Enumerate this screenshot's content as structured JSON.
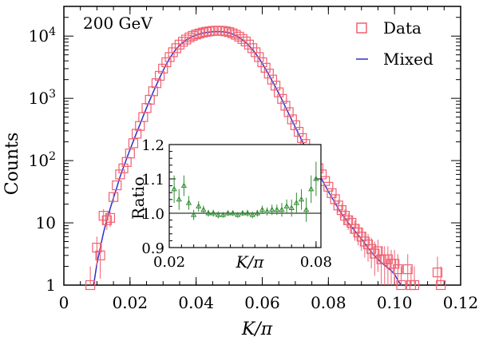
{
  "chart_data": [
    {
      "type": "scatter",
      "title": "",
      "xlabel": "K/π",
      "ylabel": "Counts",
      "annotation": "200 GeV",
      "xlim": [
        0,
        0.12
      ],
      "ylim": [
        1,
        30000
      ],
      "yscale": "log",
      "x_ticks": [
        0,
        0.02,
        0.04,
        0.06,
        0.08,
        0.1,
        0.12
      ],
      "x_tick_labels": [
        "0",
        "0.02",
        "0.04",
        "0.06",
        "0.08",
        "0.10",
        "0.12"
      ],
      "y_ticks": [
        1,
        10,
        100,
        1000,
        10000
      ],
      "y_tick_labels": [
        "1",
        "10",
        "10^2",
        "10^3",
        "10^4"
      ],
      "legend_position": "top-right",
      "series": [
        {
          "name": "Data",
          "style": "open-square",
          "color": "#f06070",
          "points": [
            [
              0.008,
              1
            ],
            [
              0.01,
              4
            ],
            [
              0.011,
              3
            ],
            [
              0.012,
              13
            ],
            [
              0.013,
              11
            ],
            [
              0.014,
              12
            ],
            [
              0.015,
              26
            ],
            [
              0.016,
              40
            ],
            [
              0.017,
              60
            ],
            [
              0.018,
              75
            ],
            [
              0.019,
              95
            ],
            [
              0.02,
              130
            ],
            [
              0.021,
              190
            ],
            [
              0.022,
              270
            ],
            [
              0.023,
              360
            ],
            [
              0.024,
              500
            ],
            [
              0.025,
              700
            ],
            [
              0.026,
              950
            ],
            [
              0.027,
              1300
            ],
            [
              0.028,
              1750
            ],
            [
              0.029,
              2300
            ],
            [
              0.03,
              3000
            ],
            [
              0.031,
              3800
            ],
            [
              0.032,
              4600
            ],
            [
              0.033,
              5500
            ],
            [
              0.034,
              6400
            ],
            [
              0.035,
              7300
            ],
            [
              0.036,
              8100
            ],
            [
              0.037,
              8800
            ],
            [
              0.038,
              9500
            ],
            [
              0.039,
              10100
            ],
            [
              0.04,
              10600
            ],
            [
              0.041,
              11000
            ],
            [
              0.042,
              11400
            ],
            [
              0.043,
              11700
            ],
            [
              0.044,
              11900
            ],
            [
              0.045,
              12100
            ],
            [
              0.046,
              12200
            ],
            [
              0.047,
              12200
            ],
            [
              0.048,
              12100
            ],
            [
              0.049,
              11900
            ],
            [
              0.05,
              11600
            ],
            [
              0.051,
              11100
            ],
            [
              0.052,
              10500
            ],
            [
              0.053,
              9800
            ],
            [
              0.054,
              9000
            ],
            [
              0.055,
              8200
            ],
            [
              0.056,
              7300
            ],
            [
              0.057,
              6400
            ],
            [
              0.058,
              5500
            ],
            [
              0.059,
              4600
            ],
            [
              0.06,
              3800
            ],
            [
              0.061,
              3100
            ],
            [
              0.062,
              2500
            ],
            [
              0.063,
              2000
            ],
            [
              0.064,
              1600
            ],
            [
              0.065,
              1250
            ],
            [
              0.066,
              980
            ],
            [
              0.067,
              760
            ],
            [
              0.068,
              600
            ],
            [
              0.069,
              460
            ],
            [
              0.07,
              370
            ],
            [
              0.071,
              290
            ],
            [
              0.072,
              230
            ],
            [
              0.073,
              185
            ],
            [
              0.074,
              150
            ],
            [
              0.075,
              120
            ],
            [
              0.076,
              95
            ],
            [
              0.077,
              75
            ],
            [
              0.078,
              60
            ],
            [
              0.079,
              47
            ],
            [
              0.08,
              38
            ],
            [
              0.081,
              30
            ],
            [
              0.082,
              24
            ],
            [
              0.083,
              19
            ],
            [
              0.084,
              16
            ],
            [
              0.085,
              13
            ],
            [
              0.086,
              11
            ],
            [
              0.087,
              10
            ],
            [
              0.088,
              8
            ],
            [
              0.089,
              7
            ],
            [
              0.09,
              6
            ],
            [
              0.091,
              5
            ],
            [
              0.092,
              4.5
            ],
            [
              0.093,
              3.8
            ],
            [
              0.094,
              3.2
            ],
            [
              0.095,
              3.5
            ],
            [
              0.096,
              2.6
            ],
            [
              0.097,
              2.6
            ],
            [
              0.098,
              2.6
            ],
            [
              0.099,
              2.2
            ],
            [
              0.1,
              2.2
            ],
            [
              0.101,
              1.8
            ],
            [
              0.102,
              1
            ],
            [
              0.104,
              1.8
            ],
            [
              0.105,
              1
            ],
            [
              0.106,
              1
            ],
            [
              0.113,
              1.6
            ],
            [
              0.114,
              1
            ]
          ]
        },
        {
          "name": "Mixed",
          "style": "line",
          "color": "#2a2fd0",
          "points": [
            [
              0.009,
              1
            ],
            [
              0.01,
              2.2
            ],
            [
              0.011,
              4
            ],
            [
              0.012,
              7
            ],
            [
              0.013,
              11
            ],
            [
              0.014,
              17
            ],
            [
              0.015,
              25
            ],
            [
              0.016,
              37
            ],
            [
              0.017,
              55
            ],
            [
              0.018,
              78
            ],
            [
              0.019,
              108
            ],
            [
              0.02,
              150
            ],
            [
              0.021,
              205
            ],
            [
              0.022,
              280
            ],
            [
              0.023,
              380
            ],
            [
              0.024,
              520
            ],
            [
              0.025,
              700
            ],
            [
              0.026,
              940
            ],
            [
              0.027,
              1250
            ],
            [
              0.028,
              1650
            ],
            [
              0.029,
              2150
            ],
            [
              0.03,
              2800
            ],
            [
              0.031,
              3550
            ],
            [
              0.032,
              4400
            ],
            [
              0.033,
              5300
            ],
            [
              0.034,
              6200
            ],
            [
              0.035,
              7100
            ],
            [
              0.036,
              7900
            ],
            [
              0.037,
              8650
            ],
            [
              0.038,
              9300
            ],
            [
              0.039,
              9900
            ],
            [
              0.04,
              10400
            ],
            [
              0.041,
              10800
            ],
            [
              0.042,
              11150
            ],
            [
              0.043,
              11400
            ],
            [
              0.044,
              11600
            ],
            [
              0.045,
              11750
            ],
            [
              0.046,
              11800
            ],
            [
              0.047,
              11800
            ],
            [
              0.048,
              11750
            ],
            [
              0.049,
              11550
            ],
            [
              0.05,
              11250
            ],
            [
              0.051,
              10800
            ],
            [
              0.052,
              10200
            ],
            [
              0.053,
              9500
            ],
            [
              0.054,
              8700
            ],
            [
              0.055,
              7900
            ],
            [
              0.056,
              7000
            ],
            [
              0.057,
              6100
            ],
            [
              0.058,
              5250
            ],
            [
              0.059,
              4400
            ],
            [
              0.06,
              3650
            ],
            [
              0.061,
              2950
            ],
            [
              0.062,
              2400
            ],
            [
              0.063,
              1900
            ],
            [
              0.064,
              1520
            ],
            [
              0.065,
              1200
            ],
            [
              0.066,
              940
            ],
            [
              0.067,
              730
            ],
            [
              0.068,
              570
            ],
            [
              0.069,
              440
            ],
            [
              0.07,
              345
            ],
            [
              0.071,
              268
            ],
            [
              0.072,
              210
            ],
            [
              0.073,
              165
            ],
            [
              0.074,
              130
            ],
            [
              0.075,
              102
            ],
            [
              0.076,
              80
            ],
            [
              0.077,
              63
            ],
            [
              0.078,
              50
            ],
            [
              0.079,
              40
            ],
            [
              0.08,
              32
            ],
            [
              0.081,
              26
            ],
            [
              0.082,
              21
            ],
            [
              0.083,
              17
            ],
            [
              0.084,
              14
            ],
            [
              0.085,
              12
            ],
            [
              0.086,
              10
            ],
            [
              0.087,
              8.6
            ],
            [
              0.088,
              7.4
            ],
            [
              0.089,
              6.4
            ],
            [
              0.09,
              5.5
            ],
            [
              0.091,
              4.7
            ],
            [
              0.092,
              4
            ],
            [
              0.093,
              3.4
            ],
            [
              0.094,
              2.9
            ],
            [
              0.095,
              2.6
            ],
            [
              0.096,
              2.3
            ],
            [
              0.097,
              2.1
            ],
            [
              0.098,
              1.9
            ],
            [
              0.099,
              1.7
            ],
            [
              0.1,
              1.5
            ],
            [
              0.101,
              1.2
            ],
            [
              0.102,
              1
            ]
          ]
        }
      ]
    },
    {
      "type": "scatter",
      "title": "",
      "xlabel": "K/π",
      "ylabel": "Ratio",
      "xlim": [
        0.02,
        0.082
      ],
      "ylim": [
        0.9,
        1.2
      ],
      "x_ticks": [
        0.02,
        0.08
      ],
      "x_tick_labels": [
        "0.02",
        "0.08"
      ],
      "y_ticks": [
        0.9,
        1.0,
        1.1,
        1.2
      ],
      "y_tick_labels": [
        "0.9",
        "1.0",
        "1.1",
        "1.2"
      ],
      "reference_line": 1.0,
      "series": [
        {
          "name": "",
          "style": "open-triangle",
          "color": "#2e8b2e",
          "points": [
            [
              0.022,
              1.07,
              0.04
            ],
            [
              0.024,
              1.04,
              0.03
            ],
            [
              0.026,
              1.08,
              0.03
            ],
            [
              0.028,
              1.03,
              0.02
            ],
            [
              0.03,
              0.995,
              0.015
            ],
            [
              0.032,
              1.02,
              0.015
            ],
            [
              0.034,
              1.01,
              0.012
            ],
            [
              0.036,
              1.0,
              0.01
            ],
            [
              0.038,
              1.0,
              0.01
            ],
            [
              0.04,
              0.995,
              0.01
            ],
            [
              0.042,
              0.995,
              0.008
            ],
            [
              0.044,
              1.0,
              0.008
            ],
            [
              0.046,
              1.0,
              0.008
            ],
            [
              0.048,
              0.995,
              0.008
            ],
            [
              0.05,
              1.0,
              0.008
            ],
            [
              0.052,
              1.0,
              0.01
            ],
            [
              0.054,
              0.995,
              0.01
            ],
            [
              0.056,
              1.0,
              0.01
            ],
            [
              0.058,
              1.01,
              0.012
            ],
            [
              0.06,
              1.005,
              0.012
            ],
            [
              0.062,
              1.01,
              0.015
            ],
            [
              0.064,
              1.01,
              0.015
            ],
            [
              0.066,
              1.01,
              0.02
            ],
            [
              0.068,
              1.02,
              0.02
            ],
            [
              0.07,
              1.015,
              0.025
            ],
            [
              0.072,
              1.03,
              0.03
            ],
            [
              0.074,
              1.04,
              0.03
            ],
            [
              0.076,
              1.01,
              0.035
            ],
            [
              0.078,
              1.07,
              0.04
            ],
            [
              0.08,
              1.1,
              0.05
            ]
          ]
        }
      ]
    }
  ]
}
